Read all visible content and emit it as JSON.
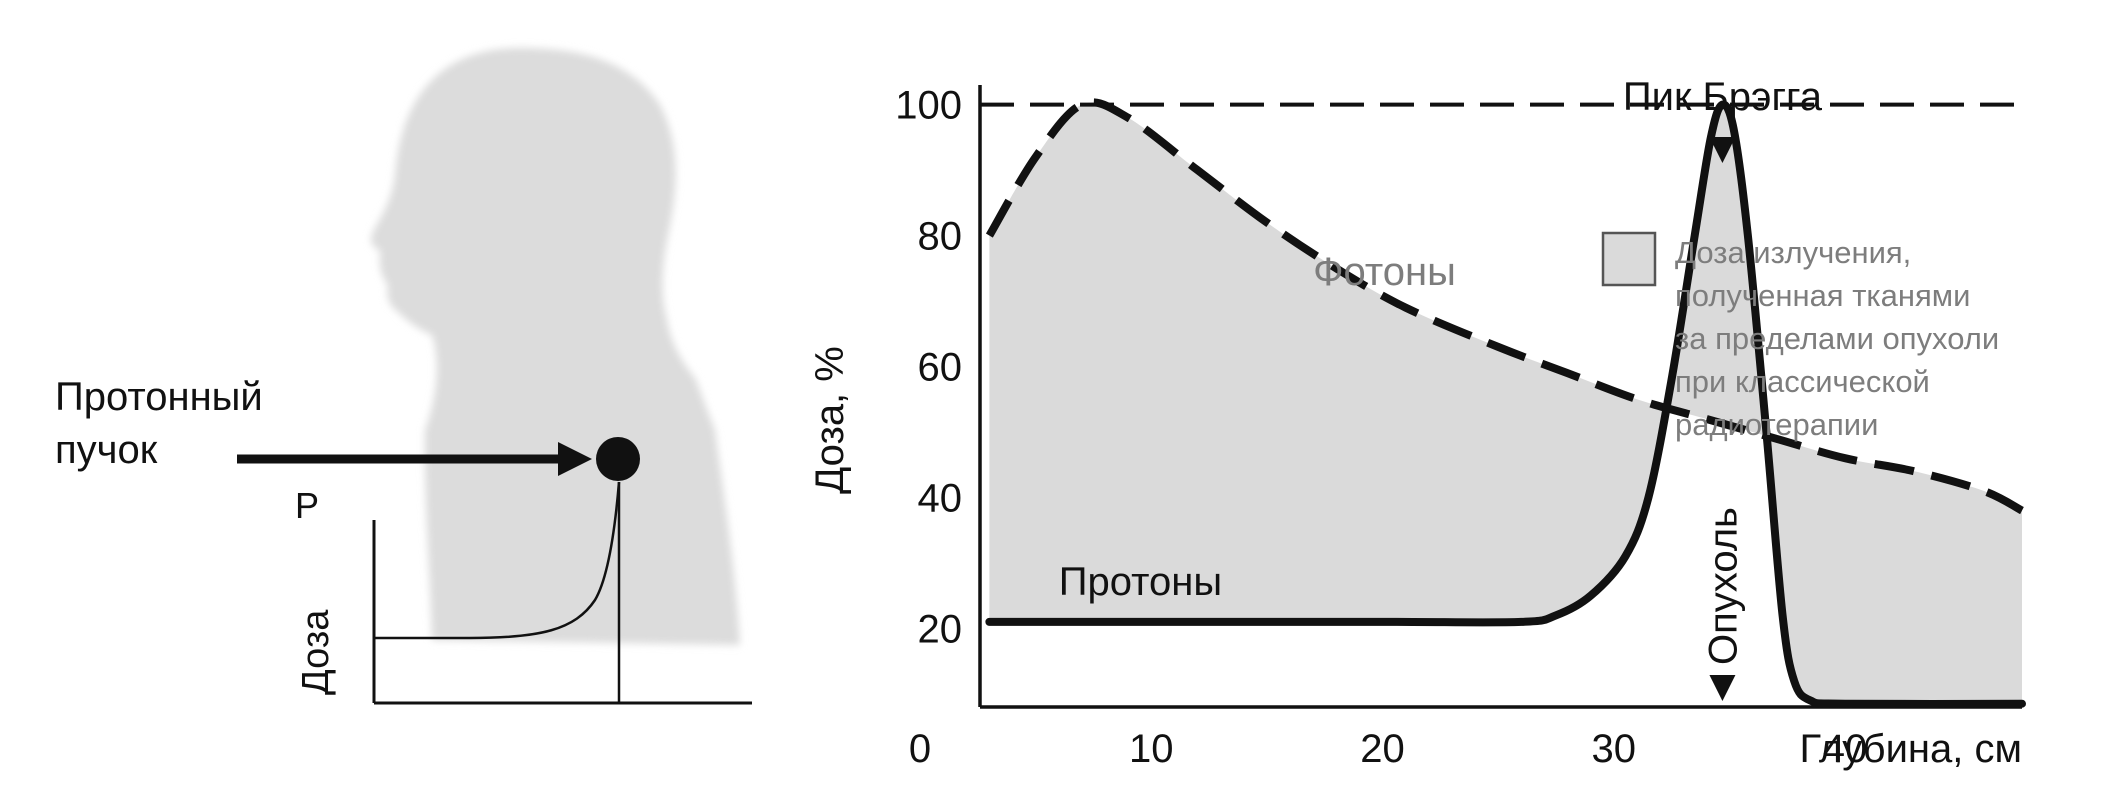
{
  "left_panel": {
    "beam_label_line1": "Протонный",
    "beam_label_line2": "пучок",
    "axis_p_label": "P",
    "axis_dose_label": "Доза"
  },
  "chart_data": {
    "type": "line",
    "xlabel": "Глубина, см",
    "ylabel": "Доза, %",
    "xlim": [
      0,
      48
    ],
    "ylim": [
      8,
      103
    ],
    "x_ticks": [
      0,
      10,
      20,
      30,
      40
    ],
    "x_tick_labels": [
      "0",
      "10",
      "20",
      "30",
      "40"
    ],
    "y_ticks": [
      20,
      40,
      60,
      80,
      100
    ],
    "y_tick_labels": [
      "20",
      "40",
      "60",
      "80",
      "100"
    ],
    "reference_line": {
      "y": 100,
      "style": "dashed"
    },
    "series": [
      {
        "name": "Фотоны",
        "style": "dashed",
        "color": "#111111",
        "points": [
          [
            3,
            80
          ],
          [
            5,
            92
          ],
          [
            7,
            100
          ],
          [
            9,
            98
          ],
          [
            12,
            90
          ],
          [
            15,
            82
          ],
          [
            18,
            75
          ],
          [
            21,
            69
          ],
          [
            25,
            63
          ],
          [
            28,
            59
          ],
          [
            31,
            55
          ],
          [
            34,
            52
          ],
          [
            37,
            49
          ],
          [
            40,
            46
          ],
          [
            43,
            44
          ],
          [
            46,
            41
          ],
          [
            49,
            38
          ],
          [
            52,
            36
          ],
          [
            55,
            34
          ]
        ]
      },
      {
        "name": "Протоны",
        "style": "solid",
        "color": "#111111",
        "points": [
          [
            3,
            21
          ],
          [
            10,
            21
          ],
          [
            20,
            21
          ],
          [
            26,
            21
          ],
          [
            27.5,
            22
          ],
          [
            29,
            25
          ],
          [
            30.5,
            31
          ],
          [
            31.5,
            40
          ],
          [
            32.5,
            58
          ],
          [
            33.5,
            80
          ],
          [
            34.2,
            95
          ],
          [
            34.7,
            100
          ],
          [
            35.2,
            96
          ],
          [
            35.8,
            80
          ],
          [
            36.6,
            50
          ],
          [
            37.3,
            22
          ],
          [
            37.8,
            12
          ],
          [
            38.5,
            9
          ],
          [
            40,
            8.5
          ],
          [
            55,
            8.5
          ]
        ]
      }
    ],
    "annotations": {
      "bragg_peak": "Пик Брэгга",
      "tumor": "Опухоль",
      "tumor_depth": 34.7,
      "photons": "Фотоны",
      "protons": "Протоны"
    },
    "legend": {
      "swatch_color": "#dadada",
      "text_lines": [
        "Доза излучения,",
        "полученная тканями",
        "за пределами опухоли",
        "при классической",
        "радиотерапии"
      ]
    },
    "fill_color": "#dadada",
    "grid": false
  }
}
